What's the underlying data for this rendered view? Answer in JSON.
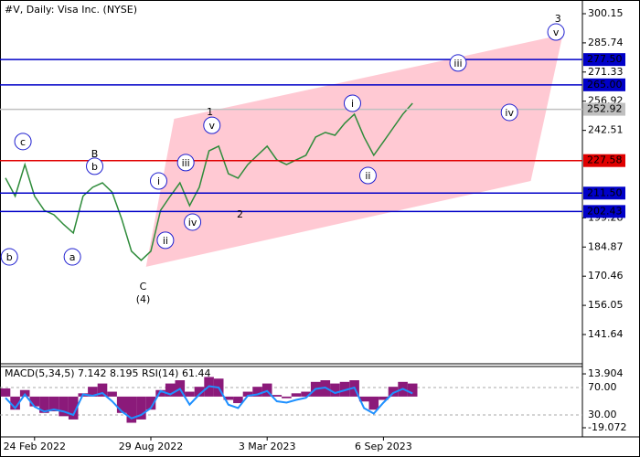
{
  "chart_data": [
    {
      "type": "line",
      "title": "#V, Daily:  Visa Inc. (NYSE)",
      "categories": [
        null,
        null,
        null,
        "24 Feb 2022",
        null,
        null,
        null,
        null,
        null,
        null,
        null,
        null,
        null,
        null,
        null,
        "29 Aug 2022",
        null,
        null,
        null,
        null,
        null,
        null,
        null,
        null,
        null,
        null,
        null,
        "3 Mar 2023",
        null,
        null,
        null,
        null,
        null,
        null,
        null,
        null,
        null,
        null,
        null,
        "6 Sep 2023",
        null,
        null,
        null,
        null,
        null,
        null,
        null,
        null,
        null,
        null,
        null,
        null,
        null,
        null,
        null,
        null,
        null,
        null,
        null,
        null
      ],
      "series": [
        {
          "color": "#2e8b3a",
          "values": [
            219,
            210,
            225.6,
            210,
            203,
            200.8,
            196,
            191.8,
            210,
            214.4,
            216.6,
            212,
            198.6,
            182.8,
            178.3,
            182.8,
            203,
            210,
            216.6,
            205.3,
            214.4,
            232.4,
            234.7,
            221.1,
            218.9,
            225.6,
            230.2,
            234.7,
            227.9,
            225.6,
            227.9,
            230.2,
            239.2,
            241.5,
            240.1,
            246,
            250.5,
            239.2,
            230.2,
            236.9,
            243.7,
            250.5,
            255.9,
            null,
            null,
            null,
            null,
            null,
            null,
            null,
            null,
            null,
            null,
            null,
            null,
            null,
            null,
            null,
            null,
            null
          ]
        }
      ],
      "ylim": [
        127.19,
        306.92
      ],
      "yticks": [
        {
          "value": 300.15,
          "label": "300.15"
        },
        {
          "value": 285.74,
          "label": "285.74"
        },
        {
          "value": 271.33,
          "label": "271.33"
        },
        {
          "value": 256.92,
          "label": "256.92"
        },
        {
          "value": 242.51,
          "label": "242.51"
        },
        {
          "value": 199.28,
          "label": "199.28"
        },
        {
          "value": 184.87,
          "label": "184.87"
        },
        {
          "value": 170.46,
          "label": "170.46"
        },
        {
          "value": 156.05,
          "label": "156.05"
        },
        {
          "value": 141.64,
          "label": "141.64"
        }
      ],
      "levels": [
        {
          "value": 277.5,
          "label": "277.50",
          "color": "#0000c8"
        },
        {
          "value": 265.0,
          "label": "265.00",
          "color": "#0000c8"
        },
        {
          "value": 252.92,
          "label": "252.92",
          "color": "#c0c0c0"
        },
        {
          "value": 227.58,
          "label": "227.58",
          "color": "#e00000"
        },
        {
          "value": 211.5,
          "label": "211.50",
          "color": "#0000c8"
        },
        {
          "value": 202.43,
          "label": "202.43",
          "color": "#0000c8"
        }
      ],
      "channel": {
        "color": "#ffc0cb",
        "points": [
          [
            14.5,
            175.1
          ],
          [
            17.4,
            248.2
          ],
          [
            57.5,
            289.8
          ],
          [
            54.2,
            217.5
          ]
        ]
      },
      "annotations": [
        {
          "text": "c",
          "x": 1.8,
          "y": 237,
          "color": "#2020d0",
          "circled": true
        },
        {
          "text": "b",
          "x": 0.4,
          "y": 180,
          "color": "#2020d0",
          "circled": true
        },
        {
          "text": "B",
          "x": 9.2,
          "y": 231,
          "color": "#c03020",
          "circled": false
        },
        {
          "text": "b",
          "x": 9.2,
          "y": 224.8,
          "color": "#2020d0",
          "circled": true
        },
        {
          "text": "a",
          "x": 6.9,
          "y": 180,
          "color": "#2020d0",
          "circled": true
        },
        {
          "text": "C",
          "x": 14.2,
          "y": 165.6,
          "color": "#c03020",
          "circled": false
        },
        {
          "text": "(4)",
          "x": 14.2,
          "y": 159.3,
          "color": "#2e8b3a",
          "circled": false
        },
        {
          "text": "i",
          "x": 15.8,
          "y": 217.5,
          "color": "#2020d0",
          "circled": true
        },
        {
          "text": "ii",
          "x": 16.5,
          "y": 188.2,
          "color": "#2020d0",
          "circled": true
        },
        {
          "text": "iii",
          "x": 18.6,
          "y": 226.6,
          "color": "#2020d0",
          "circled": true
        },
        {
          "text": "iv",
          "x": 19.3,
          "y": 197.2,
          "color": "#2020d0",
          "circled": true
        },
        {
          "text": "1",
          "x": 21.1,
          "y": 251.8,
          "color": "#c03020",
          "circled": false
        },
        {
          "text": "v",
          "x": 21.3,
          "y": 245,
          "color": "#2020d0",
          "circled": true
        },
        {
          "text": "2",
          "x": 24.2,
          "y": 201.3,
          "color": "#c03020",
          "circled": false
        },
        {
          "text": "i",
          "x": 35.8,
          "y": 255.9,
          "color": "#2020d0",
          "circled": true
        },
        {
          "text": "ii",
          "x": 37.4,
          "y": 220.2,
          "color": "#2020d0",
          "circled": true
        },
        {
          "text": "iii",
          "x": 46.7,
          "y": 275.8,
          "color": "#2020d0",
          "circled": true
        },
        {
          "text": "iv",
          "x": 52,
          "y": 251.4,
          "color": "#2020d0",
          "circled": true
        },
        {
          "text": "v",
          "x": 56.8,
          "y": 291.1,
          "color": "#2020d0",
          "circled": true
        },
        {
          "text": "3",
          "x": 57,
          "y": 297.9,
          "color": "#c03020",
          "circled": false
        }
      ]
    },
    {
      "type": "indicator",
      "title": "MACD(5,34,5) 7.142 8.195 RSI(14) 61.44",
      "series": [
        {
          "color": "#8b1a7a",
          "values": [
            5,
            -8,
            4,
            -6,
            -10,
            -9,
            -12,
            -14,
            2,
            6,
            8,
            3,
            -10,
            -16,
            -14,
            -8,
            4,
            8,
            10,
            3,
            6,
            12,
            11,
            -2,
            -4,
            3,
            6,
            8,
            1,
            -1,
            2,
            3,
            9,
            10,
            8,
            9,
            10,
            -3,
            -8,
            -2,
            6,
            9,
            8
          ]
        },
        {
          "color": "#1e90ff",
          "axis": "y2",
          "values": [
            55,
            40,
            60,
            42,
            35,
            38,
            35,
            30,
            60,
            58,
            62,
            50,
            35,
            25,
            30,
            40,
            65,
            60,
            68,
            45,
            60,
            72,
            70,
            45,
            40,
            58,
            60,
            65,
            50,
            48,
            52,
            55,
            68,
            70,
            62,
            66,
            70,
            40,
            32,
            48,
            62,
            68,
            61.44
          ]
        }
      ],
      "ylim": [
        -24.1,
        18.4
      ],
      "yticks": [
        13.904,
        -19.072
      ],
      "y2lim": [
        -0.7,
        100.7
      ],
      "y2ticks": [
        {
          "value": 70,
          "label": "70.00"
        },
        {
          "value": 30,
          "label": "30.00"
        }
      ]
    }
  ]
}
